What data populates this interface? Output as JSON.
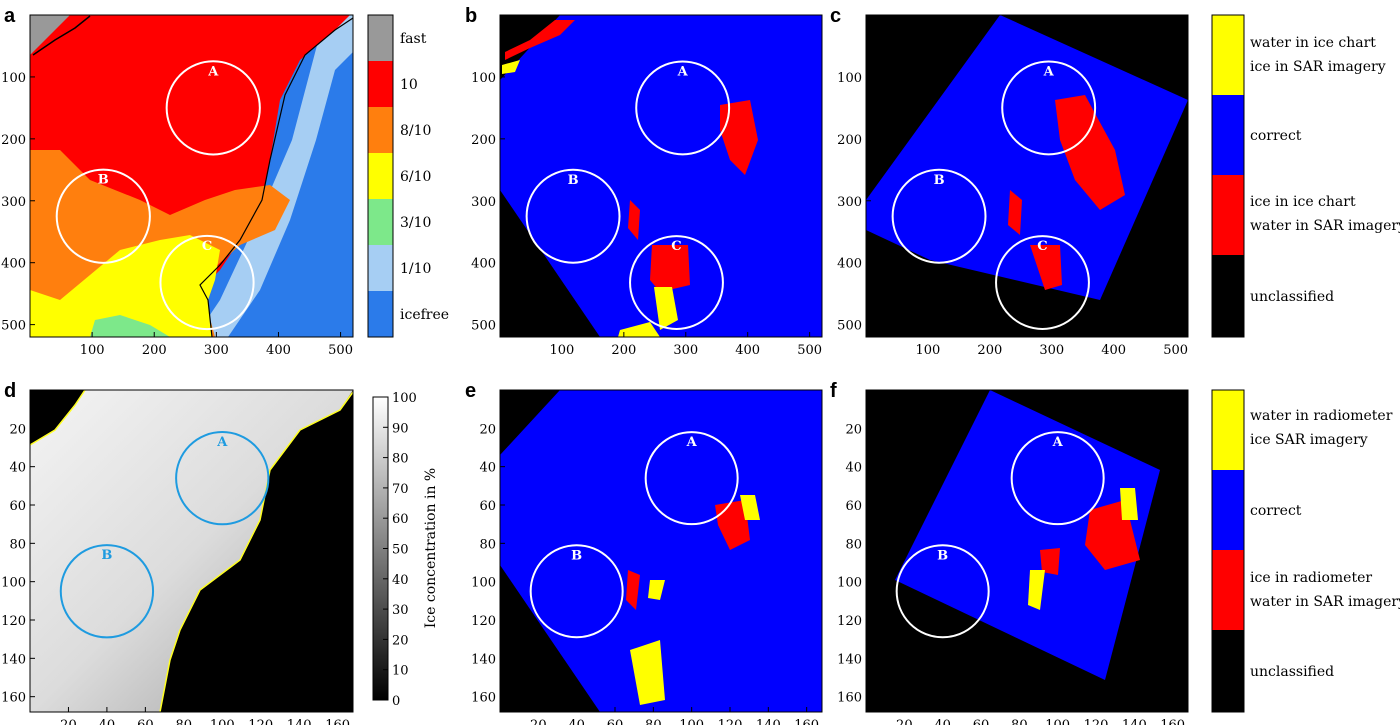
{
  "colors": {
    "ice_red": "#ff0000",
    "water_blue": "#0000ff",
    "yellow": "#ffff00",
    "black": "#000000",
    "chart_orange": "#ff7f0e",
    "chart_green": "#7de88a",
    "chart_lightblue": "#a6cef3",
    "chart_blue": "#2b7bea",
    "chart_grey": "#999999",
    "circle_white": "#ffffff",
    "circle_cyan": "#1e9be0",
    "coast_line": "#ffff22"
  },
  "panels": {
    "a": {
      "label": "a"
    },
    "b": {
      "label": "b"
    },
    "c": {
      "label": "c"
    },
    "d": {
      "label": "d"
    },
    "e": {
      "label": "e"
    },
    "f": {
      "label": "f"
    }
  },
  "colorbars": {
    "chart": {
      "labels": [
        "fast",
        "10",
        "8/10",
        "6/10",
        "3/10",
        "1/10",
        "icefree"
      ]
    },
    "cls1": {
      "labels": [
        [
          "water in ice chart",
          "ice in SAR imagery"
        ],
        [
          "correct"
        ],
        [
          "ice in ice chart",
          "water in SAR imagery"
        ],
        [
          "unclassified"
        ]
      ]
    },
    "conc": {
      "ticks": [
        "100",
        "90",
        "80",
        "70",
        "60",
        "50",
        "40",
        "30",
        "20",
        "10",
        "0"
      ],
      "title": "Ice concentration in %"
    },
    "cls2": {
      "labels": [
        [
          "water in radiometer",
          "ice SAR imagery"
        ],
        [
          "correct"
        ],
        [
          "ice in radiometer",
          "water in SAR imagery"
        ],
        [
          "unclassified"
        ]
      ]
    }
  },
  "chart_data": [
    {
      "id": "a",
      "type": "heatmap",
      "title": "",
      "xlabel": "",
      "ylabel": "",
      "xticks": [
        100,
        200,
        300,
        400,
        500
      ],
      "yticks": [
        100,
        200,
        300,
        400,
        500
      ],
      "xlim": [
        0,
        520
      ],
      "ylim": [
        520,
        0
      ],
      "circles": [
        {
          "label": "A",
          "x": 295,
          "y": 150,
          "r": 75
        },
        {
          "label": "B",
          "x": 118,
          "y": 325,
          "r": 75
        },
        {
          "label": "C",
          "x": 285,
          "y": 432,
          "r": 75
        }
      ]
    },
    {
      "id": "b",
      "type": "heatmap",
      "title": "",
      "xlabel": "",
      "ylabel": "",
      "xticks": [
        100,
        200,
        300,
        400,
        500
      ],
      "yticks": [
        100,
        200,
        300,
        400,
        500
      ],
      "xlim": [
        0,
        520
      ],
      "ylim": [
        520,
        0
      ],
      "circles": [
        {
          "label": "A",
          "x": 295,
          "y": 150,
          "r": 75
        },
        {
          "label": "B",
          "x": 118,
          "y": 325,
          "r": 75
        },
        {
          "label": "C",
          "x": 285,
          "y": 432,
          "r": 75
        }
      ]
    },
    {
      "id": "c",
      "type": "heatmap",
      "title": "",
      "xlabel": "",
      "ylabel": "",
      "xticks": [
        100,
        200,
        300,
        400,
        500
      ],
      "yticks": [
        100,
        200,
        300,
        400,
        500
      ],
      "xlim": [
        0,
        520
      ],
      "ylim": [
        520,
        0
      ],
      "circles": [
        {
          "label": "A",
          "x": 295,
          "y": 150,
          "r": 75
        },
        {
          "label": "B",
          "x": 118,
          "y": 325,
          "r": 75
        },
        {
          "label": "C",
          "x": 285,
          "y": 432,
          "r": 75
        }
      ]
    },
    {
      "id": "d",
      "type": "heatmap",
      "title": "",
      "xlabel": "",
      "ylabel": "",
      "xticks": [
        20,
        40,
        60,
        80,
        100,
        120,
        140,
        160
      ],
      "yticks": [
        20,
        40,
        60,
        80,
        100,
        120,
        140,
        160
      ],
      "xlim": [
        0,
        168
      ],
      "ylim": [
        168,
        0
      ],
      "circles": [
        {
          "label": "A",
          "x": 100,
          "y": 46,
          "r": 24
        },
        {
          "label": "B",
          "x": 40,
          "y": 105,
          "r": 24
        }
      ]
    },
    {
      "id": "e",
      "type": "heatmap",
      "title": "",
      "xlabel": "",
      "ylabel": "",
      "xticks": [
        20,
        40,
        60,
        80,
        100,
        120,
        140,
        160
      ],
      "yticks": [
        20,
        40,
        60,
        80,
        100,
        120,
        140,
        160
      ],
      "xlim": [
        0,
        168
      ],
      "ylim": [
        168,
        0
      ],
      "circles": [
        {
          "label": "A",
          "x": 100,
          "y": 46,
          "r": 24
        },
        {
          "label": "B",
          "x": 40,
          "y": 105,
          "r": 24
        }
      ]
    },
    {
      "id": "f",
      "type": "heatmap",
      "title": "",
      "xlabel": "",
      "ylabel": "",
      "xticks": [
        20,
        40,
        60,
        80,
        100,
        120,
        140,
        160
      ],
      "yticks": [
        20,
        40,
        60,
        80,
        100,
        120,
        140,
        160
      ],
      "xlim": [
        0,
        168
      ],
      "ylim": [
        168,
        0
      ],
      "circles": [
        {
          "label": "A",
          "x": 100,
          "y": 46,
          "r": 24
        },
        {
          "label": "B",
          "x": 40,
          "y": 105,
          "r": 24
        }
      ]
    }
  ]
}
